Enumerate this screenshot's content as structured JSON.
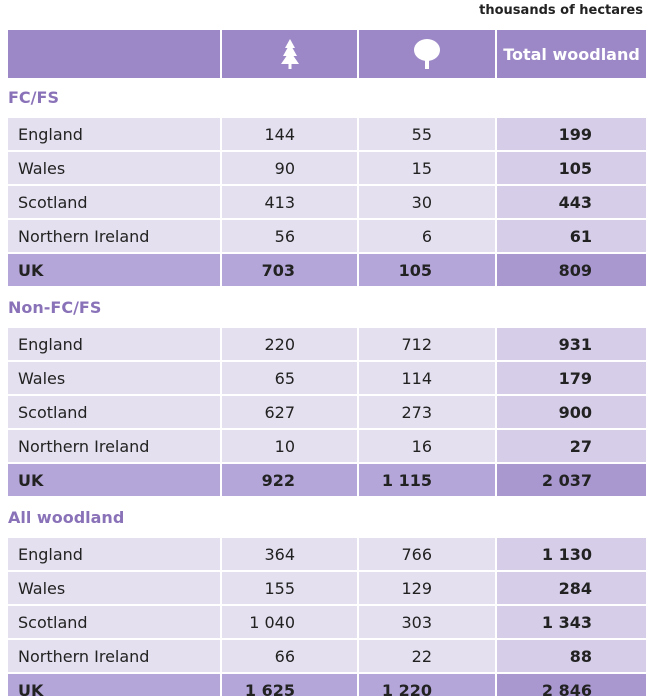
{
  "unit": "thousands of hectares",
  "header": {
    "total": "Total woodland"
  },
  "sections": [
    {
      "title": "FC/FS",
      "rows": [
        [
          "England",
          "144",
          "55",
          "199"
        ],
        [
          "Wales",
          "90",
          "15",
          "105"
        ],
        [
          "Scotland",
          "413",
          "30",
          "443"
        ],
        [
          "Northern Ireland",
          "56",
          "6",
          "61"
        ],
        [
          "UK",
          "703",
          "105",
          "809"
        ]
      ]
    },
    {
      "title": "Non-FC/FS",
      "rows": [
        [
          "England",
          "220",
          "712",
          "931"
        ],
        [
          "Wales",
          "65",
          "114",
          "179"
        ],
        [
          "Scotland",
          "627",
          "273",
          "900"
        ],
        [
          "Northern Ireland",
          "10",
          "16",
          "27"
        ],
        [
          "UK",
          "922",
          "1 115",
          "2 037"
        ]
      ]
    },
    {
      "title": "All woodland",
      "rows": [
        [
          "England",
          "364",
          "766",
          "1 130"
        ],
        [
          "Wales",
          "155",
          "129",
          "284"
        ],
        [
          "Scotland",
          "1 040",
          "303",
          "1 343"
        ],
        [
          "Northern Ireland",
          "66",
          "22",
          "88"
        ],
        [
          "UK",
          "1 625",
          "1 220",
          "2 846"
        ]
      ]
    }
  ]
}
